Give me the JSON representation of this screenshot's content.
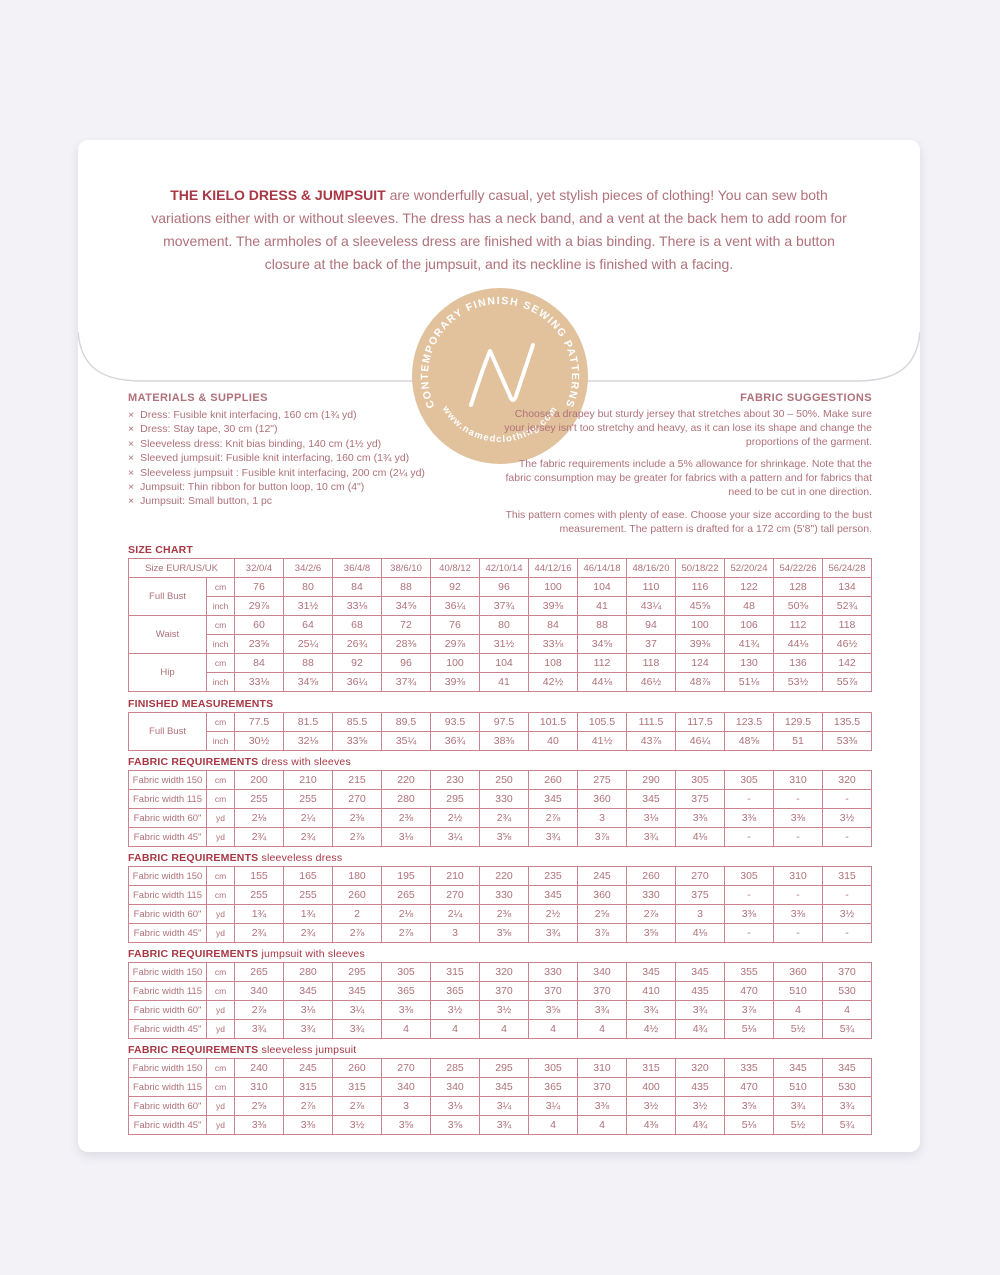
{
  "colors": {
    "accent": "#a83844",
    "text": "#b0717a",
    "border": "#c9838c",
    "logo": "#e2c19d",
    "background": "#f2f2f7",
    "envelope": "#ffffff",
    "flap_line": "#d4d4da"
  },
  "intro": {
    "title": "THE KIELO DRESS & JUMPSUIT",
    "text": "are wonderfully casual, yet stylish pieces of clothing! You can sew both variations either with or without sleeves. The dress has a neck band, and a vent at the back hem to add room for movement. The armholes of a sleeveless dress are finished with a bias binding. There is a vent with a button closure at the back of the jumpsuit, and its neckline is finished with a facing."
  },
  "logo": {
    "arc_top": "CONTEMPORARY FINNISH SEWING PATTERNS",
    "arc_bottom": "www.namedclothing.com"
  },
  "materials": {
    "heading": "MATERIALS & SUPPLIES",
    "bullet": "×",
    "items": [
      "Dress: Fusible knit interfacing, 160 cm (1¾ yd)",
      "Dress: Stay tape, 30 cm (12\")",
      "Sleeveless dress: Knit bias binding, 140 cm (1½ yd)",
      "Sleeved jumpsuit: Fusible knit interfacing, 160 cm (1¾ yd)",
      "Sleeveless jumpsuit : Fusible knit interfacing, 200 cm (2¼ yd)",
      "Jumpsuit: Thin ribbon for button loop, 10 cm (4\")",
      "Jumpsuit: Small button, 1 pc"
    ]
  },
  "fabric_suggestions": {
    "heading": "FABRIC SUGGESTIONS",
    "paragraphs": [
      "Choose a drapey but sturdy jersey that stretches about 30 – 50%. Make sure your jersey isn't too stretchy and heavy, as it can lose its shape and change the proportions of the garment.",
      "The fabric requirements include a 5% allowance for shrinkage. Note that the fabric consumption may be greater for fabrics with a pattern and for fabrics that need to be cut in one direction.",
      "This pattern comes with plenty of ease. Choose your size according to the bust measurement. The pattern is drafted for a 172 cm (5'8\") tall person."
    ]
  },
  "size_chart": {
    "heading": "SIZE CHART",
    "size_label": "Size EUR/US/UK",
    "sizes": [
      "32/0/4",
      "34/2/6",
      "36/4/8",
      "38/6/10",
      "40/8/12",
      "42/10/14",
      "44/12/16",
      "46/14/18",
      "48/16/20",
      "50/18/22",
      "52/20/24",
      "54/22/26",
      "56/24/28"
    ],
    "rows": [
      {
        "label": "Full Bust",
        "cm": [
          "76",
          "80",
          "84",
          "88",
          "92",
          "96",
          "100",
          "104",
          "110",
          "116",
          "122",
          "128",
          "134"
        ],
        "inch": [
          "29⅞",
          "31½",
          "33⅛",
          "34⅝",
          "36¼",
          "37¾",
          "39⅜",
          "41",
          "43¼",
          "45⅝",
          "48",
          "50⅜",
          "52¾"
        ]
      },
      {
        "label": "Waist",
        "cm": [
          "60",
          "64",
          "68",
          "72",
          "76",
          "80",
          "84",
          "88",
          "94",
          "100",
          "106",
          "112",
          "118"
        ],
        "inch": [
          "23⅝",
          "25¼",
          "26¾",
          "28⅜",
          "29⅞",
          "31½",
          "33⅛",
          "34⅝",
          "37",
          "39⅜",
          "41¾",
          "44⅛",
          "46½"
        ]
      },
      {
        "label": "Hip",
        "cm": [
          "84",
          "88",
          "92",
          "96",
          "100",
          "104",
          "108",
          "112",
          "118",
          "124",
          "130",
          "136",
          "142"
        ],
        "inch": [
          "33⅛",
          "34⅝",
          "36¼",
          "37¾",
          "39⅜",
          "41",
          "42½",
          "44⅛",
          "46½",
          "48⅞",
          "51⅛",
          "53½",
          "55⅞"
        ]
      }
    ]
  },
  "finished_measurements": {
    "heading": "FINISHED MEASUREMENTS",
    "rows": [
      {
        "label": "Full Bust",
        "cm": [
          "77.5",
          "81.5",
          "85.5",
          "89.5",
          "93.5",
          "97.5",
          "101.5",
          "105.5",
          "111.5",
          "117.5",
          "123.5",
          "129.5",
          "135.5"
        ],
        "inch": [
          "30½",
          "32⅛",
          "33⅝",
          "35¼",
          "36¾",
          "38⅜",
          "40",
          "41½",
          "43⅞",
          "46¼",
          "48⅝",
          "51",
          "53⅜"
        ]
      }
    ]
  },
  "fabric_requirements": [
    {
      "heading": "FABRIC REQUIREMENTS",
      "subheading": "dress with sleeves",
      "rows": [
        {
          "label": "Fabric width 150",
          "unit": "cm",
          "values": [
            "200",
            "210",
            "215",
            "220",
            "230",
            "250",
            "260",
            "275",
            "290",
            "305",
            "305",
            "310",
            "320"
          ]
        },
        {
          "label": "Fabric width 115",
          "unit": "cm",
          "values": [
            "255",
            "255",
            "270",
            "280",
            "295",
            "330",
            "345",
            "360",
            "345",
            "375",
            "-",
            "-",
            "-"
          ]
        },
        {
          "label": "Fabric width 60\"",
          "unit": "yd",
          "values": [
            "2⅛",
            "2¼",
            "2⅜",
            "2⅜",
            "2½",
            "2¾",
            "2⅞",
            "3",
            "3⅛",
            "3⅜",
            "3⅜",
            "3⅜",
            "3½"
          ]
        },
        {
          "label": "Fabric width 45\"",
          "unit": "yd",
          "values": [
            "2¾",
            "2¾",
            "2⅞",
            "3⅛",
            "3¼",
            "3⅝",
            "3¾",
            "3⅞",
            "3¾",
            "4⅛",
            "-",
            "-",
            "-"
          ]
        }
      ]
    },
    {
      "heading": "FABRIC REQUIREMENTS",
      "subheading": "sleeveless dress",
      "rows": [
        {
          "label": "Fabric width 150",
          "unit": "cm",
          "values": [
            "155",
            "165",
            "180",
            "195",
            "210",
            "220",
            "235",
            "245",
            "260",
            "270",
            "305",
            "310",
            "315"
          ]
        },
        {
          "label": "Fabric width 115",
          "unit": "cm",
          "values": [
            "255",
            "255",
            "260",
            "265",
            "270",
            "330",
            "345",
            "360",
            "330",
            "375",
            "-",
            "-",
            "-"
          ]
        },
        {
          "label": "Fabric width 60\"",
          "unit": "yd",
          "values": [
            "1¾",
            "1¾",
            "2",
            "2⅛",
            "2¼",
            "2⅜",
            "2½",
            "2⅝",
            "2⅞",
            "3",
            "3⅜",
            "3⅜",
            "3½"
          ]
        },
        {
          "label": "Fabric width 45\"",
          "unit": "yd",
          "values": [
            "2¾",
            "2¾",
            "2⅞",
            "2⅞",
            "3",
            "3⅝",
            "3¾",
            "3⅞",
            "3⅝",
            "4⅛",
            "-",
            "-",
            "-"
          ]
        }
      ]
    },
    {
      "heading": "FABRIC REQUIREMENTS",
      "subheading": "jumpsuit with sleeves",
      "rows": [
        {
          "label": "Fabric width 150",
          "unit": "cm",
          "values": [
            "265",
            "280",
            "295",
            "305",
            "315",
            "320",
            "330",
            "340",
            "345",
            "345",
            "355",
            "360",
            "370"
          ]
        },
        {
          "label": "Fabric width 115",
          "unit": "cm",
          "values": [
            "340",
            "345",
            "345",
            "365",
            "365",
            "370",
            "370",
            "370",
            "410",
            "435",
            "470",
            "510",
            "530"
          ]
        },
        {
          "label": "Fabric width 60\"",
          "unit": "yd",
          "values": [
            "2⅞",
            "3⅛",
            "3¼",
            "3⅜",
            "3½",
            "3½",
            "3⅝",
            "3¾",
            "3¾",
            "3¾",
            "3⅞",
            "4",
            "4"
          ]
        },
        {
          "label": "Fabric width 45\"",
          "unit": "yd",
          "values": [
            "3¾",
            "3¾",
            "3¾",
            "4",
            "4",
            "4",
            "4",
            "4",
            "4½",
            "4¾",
            "5⅛",
            "5½",
            "5¾"
          ]
        }
      ]
    },
    {
      "heading": "FABRIC REQUIREMENTS",
      "subheading": "sleeveless jumpsuit",
      "rows": [
        {
          "label": "Fabric width 150",
          "unit": "cm",
          "values": [
            "240",
            "245",
            "260",
            "270",
            "285",
            "295",
            "305",
            "310",
            "315",
            "320",
            "335",
            "345",
            "345"
          ]
        },
        {
          "label": "Fabric width 115",
          "unit": "cm",
          "values": [
            "310",
            "315",
            "315",
            "340",
            "340",
            "345",
            "365",
            "370",
            "400",
            "435",
            "470",
            "510",
            "530"
          ]
        },
        {
          "label": "Fabric width 60\"",
          "unit": "yd",
          "values": [
            "2⅝",
            "2⅞",
            "2⅞",
            "3",
            "3⅛",
            "3¼",
            "3¼",
            "3⅜",
            "3½",
            "3½",
            "3⅝",
            "3¾",
            "3¾"
          ]
        },
        {
          "label": "Fabric width 45\"",
          "unit": "yd",
          "values": [
            "3⅜",
            "3⅜",
            "3½",
            "3⅝",
            "3⅝",
            "3¾",
            "4",
            "4",
            "4⅜",
            "4¾",
            "5⅛",
            "5½",
            "5¾"
          ]
        }
      ]
    }
  ]
}
